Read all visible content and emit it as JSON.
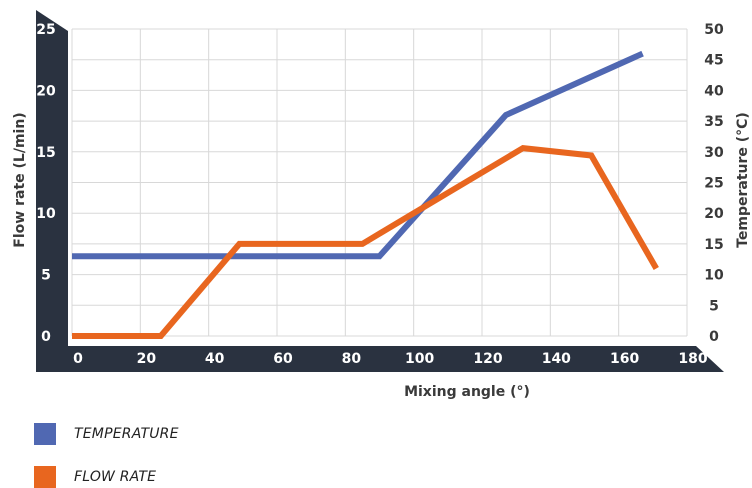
{
  "chart_data": {
    "type": "line",
    "xlabel": "Mixing angle (°)",
    "ylabel_left": "Flow rate (L/min)",
    "ylabel_right": "Temperature (°C)",
    "xlim": [
      0,
      180
    ],
    "ylim_left": [
      0,
      25
    ],
    "ylim_right": [
      0,
      50
    ],
    "x_ticks": [
      "0",
      "20",
      "40",
      "60",
      "80",
      "100",
      "120",
      "140",
      "160",
      "180"
    ],
    "y_left_ticks": [
      "0",
      "5",
      "10",
      "15",
      "20",
      "25"
    ],
    "y_right_ticks": [
      "0",
      "5",
      "10",
      "15",
      "20",
      "25",
      "30",
      "35",
      "40",
      "45",
      "50"
    ],
    "grid": true,
    "legend_position": "bottom-left",
    "series": [
      {
        "name": "TEMPERATURE",
        "axis": "right",
        "color": "#5068b2",
        "points": [
          [
            0,
            13
          ],
          [
            90,
            13
          ],
          [
            127,
            36
          ],
          [
            167,
            46
          ]
        ]
      },
      {
        "name": "FLOW RATE",
        "axis": "left",
        "color": "#e8661f",
        "points": [
          [
            0,
            0
          ],
          [
            26,
            0
          ],
          [
            49,
            7.5
          ],
          [
            85,
            7.5
          ],
          [
            100,
            10
          ],
          [
            132,
            15.3
          ],
          [
            152,
            14.7
          ],
          [
            171,
            5.5
          ]
        ]
      }
    ]
  },
  "colors": {
    "axis_band": "#2a3240",
    "grid": "#d8d8d8",
    "tick_text_right": "#3a3a3a",
    "tick_text_band": "#ffffff"
  }
}
